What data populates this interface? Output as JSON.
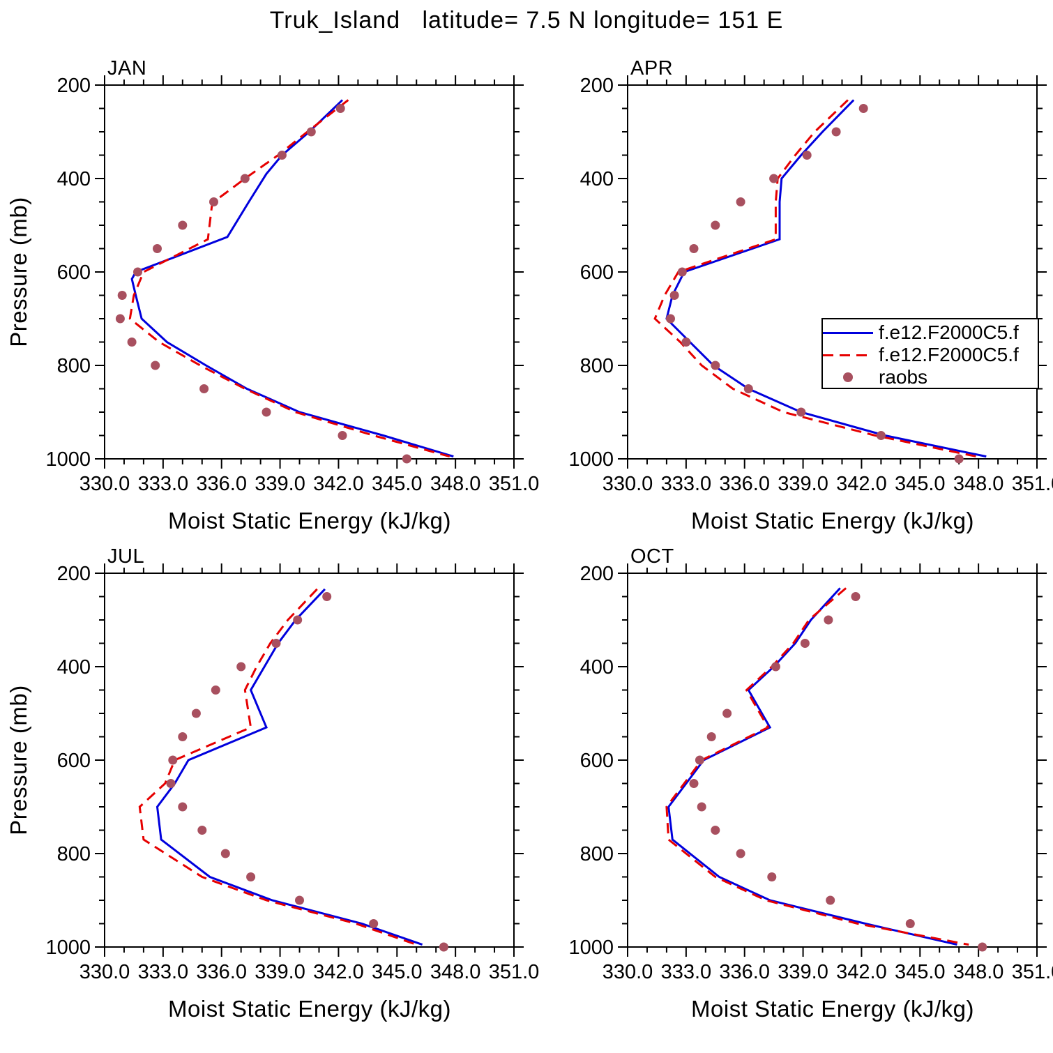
{
  "title": "Truk_Island   latitude= 7.5 N longitude= 151 E",
  "legend": {
    "items": [
      {
        "label": "f.e12.F2000C5.f",
        "style": "solid",
        "color": "#0000DD"
      },
      {
        "label": "f.e12.F2000C5.f",
        "style": "dashed",
        "color": "#E60000"
      },
      {
        "label": "raobs",
        "style": "dot",
        "color": "#A8505F"
      }
    ]
  },
  "axes": {
    "x": {
      "label": "Moist Static Energy (kJ/kg)",
      "min": 330,
      "max": 351,
      "major_ticks": [
        330,
        333,
        336,
        339,
        342,
        345,
        348,
        351
      ],
      "tick_labels": [
        "330.0",
        "333.0",
        "336.0",
        "339.0",
        "342.0",
        "345.0",
        "348.0",
        "351.0"
      ],
      "minor_step": 1
    },
    "y": {
      "label": "Pressure (mb)",
      "min": 200,
      "max": 1000,
      "major_ticks": [
        200,
        400,
        600,
        800,
        1000
      ],
      "tick_labels": [
        "200",
        "400",
        "600",
        "800",
        "1000"
      ],
      "minor_step": 50,
      "inverted": true
    }
  },
  "chart_data": [
    {
      "type": "line",
      "month": "JAN",
      "series": [
        {
          "name": "f.e12.F2000C5.f",
          "style": "solid",
          "color": "#0000DD",
          "points": [
            [
              232,
              342.2
            ],
            [
              300,
              340.5
            ],
            [
              350,
              339.1
            ],
            [
              390,
              338.3
            ],
            [
              450,
              337.4
            ],
            [
              525,
              336.3
            ],
            [
              600,
              331.6
            ],
            [
              615,
              331.4
            ],
            [
              650,
              331.6
            ],
            [
              700,
              331.9
            ],
            [
              750,
              333.2
            ],
            [
              800,
              335.2
            ],
            [
              850,
              337.3
            ],
            [
              900,
              340.0
            ],
            [
              950,
              344.3
            ],
            [
              995,
              347.9
            ]
          ]
        },
        {
          "name": "f.e12.F2000C5.f",
          "style": "dashed",
          "color": "#E60000",
          "points": [
            [
              232,
              342.5
            ],
            [
              300,
              340.4
            ],
            [
              350,
              338.9
            ],
            [
              400,
              337.2
            ],
            [
              450,
              335.6
            ],
            [
              460,
              335.5
            ],
            [
              530,
              335.3
            ],
            [
              600,
              332.0
            ],
            [
              650,
              331.5
            ],
            [
              700,
              331.3
            ],
            [
              750,
              332.8
            ],
            [
              800,
              334.9
            ],
            [
              850,
              337.2
            ],
            [
              900,
              339.8
            ],
            [
              950,
              343.8
            ],
            [
              995,
              347.7
            ]
          ]
        },
        {
          "name": "raobs",
          "style": "dots",
          "color": "#A8505F",
          "points": [
            [
              250,
              342.1
            ],
            [
              300,
              340.6
            ],
            [
              350,
              339.1
            ],
            [
              400,
              337.2
            ],
            [
              450,
              335.6
            ],
            [
              500,
              334.0
            ],
            [
              550,
              332.7
            ],
            [
              600,
              331.7
            ],
            [
              650,
              330.9
            ],
            [
              700,
              330.8
            ],
            [
              750,
              331.4
            ],
            [
              800,
              332.6
            ],
            [
              850,
              335.1
            ],
            [
              900,
              338.3
            ],
            [
              950,
              342.2
            ],
            [
              1000,
              345.5
            ]
          ]
        }
      ]
    },
    {
      "type": "line",
      "month": "APR",
      "series": [
        {
          "name": "f.e12.F2000C5.f",
          "style": "solid",
          "color": "#0000DD",
          "points": [
            [
              232,
              341.6
            ],
            [
              300,
              340.0
            ],
            [
              350,
              338.9
            ],
            [
              400,
              337.9
            ],
            [
              450,
              337.8
            ],
            [
              530,
              337.8
            ],
            [
              600,
              332.9
            ],
            [
              650,
              332.3
            ],
            [
              700,
              332.0
            ],
            [
              750,
              333.2
            ],
            [
              800,
              334.4
            ],
            [
              850,
              336.2
            ],
            [
              900,
              338.9
            ],
            [
              950,
              343.2
            ],
            [
              995,
              348.4
            ]
          ]
        },
        {
          "name": "f.e12.F2000C5.f",
          "style": "dashed",
          "color": "#E60000",
          "points": [
            [
              232,
              341.3
            ],
            [
              300,
              339.6
            ],
            [
              350,
              338.6
            ],
            [
              400,
              337.7
            ],
            [
              450,
              337.6
            ],
            [
              530,
              337.6
            ],
            [
              600,
              332.6
            ],
            [
              650,
              331.9
            ],
            [
              700,
              331.4
            ],
            [
              750,
              332.7
            ],
            [
              800,
              333.8
            ],
            [
              850,
              335.4
            ],
            [
              900,
              338.0
            ],
            [
              950,
              342.7
            ],
            [
              995,
              347.9
            ]
          ]
        },
        {
          "name": "raobs",
          "style": "dots",
          "color": "#A8505F",
          "points": [
            [
              250,
              342.1
            ],
            [
              300,
              340.7
            ],
            [
              350,
              339.2
            ],
            [
              400,
              337.5
            ],
            [
              450,
              335.8
            ],
            [
              500,
              334.5
            ],
            [
              550,
              333.4
            ],
            [
              600,
              332.8
            ],
            [
              650,
              332.4
            ],
            [
              700,
              332.2
            ],
            [
              750,
              333.0
            ],
            [
              800,
              334.5
            ],
            [
              850,
              336.2
            ],
            [
              900,
              338.9
            ],
            [
              950,
              343.0
            ],
            [
              1000,
              347.0
            ]
          ]
        }
      ]
    },
    {
      "type": "line",
      "month": "JUL",
      "series": [
        {
          "name": "f.e12.F2000C5.f",
          "style": "solid",
          "color": "#0000DD",
          "points": [
            [
              234,
              341.3
            ],
            [
              300,
              339.8
            ],
            [
              350,
              338.9
            ],
            [
              400,
              338.2
            ],
            [
              450,
              337.5
            ],
            [
              530,
              338.3
            ],
            [
              600,
              334.3
            ],
            [
              650,
              333.6
            ],
            [
              700,
              332.7
            ],
            [
              770,
              332.9
            ],
            [
              850,
              335.4
            ],
            [
              900,
              338.6
            ],
            [
              950,
              343.2
            ],
            [
              995,
              346.3
            ]
          ]
        },
        {
          "name": "f.e12.F2000C5.f",
          "style": "dashed",
          "color": "#E60000",
          "points": [
            [
              234,
              340.9
            ],
            [
              300,
              339.4
            ],
            [
              350,
              338.5
            ],
            [
              400,
              337.8
            ],
            [
              450,
              337.2
            ],
            [
              530,
              337.5
            ],
            [
              600,
              333.6
            ],
            [
              650,
              333.1
            ],
            [
              700,
              331.8
            ],
            [
              770,
              332.0
            ],
            [
              850,
              335.0
            ],
            [
              900,
              338.3
            ],
            [
              950,
              342.9
            ],
            [
              995,
              346.0
            ]
          ]
        },
        {
          "name": "raobs",
          "style": "dots",
          "color": "#A8505F",
          "points": [
            [
              250,
              341.4
            ],
            [
              300,
              339.9
            ],
            [
              350,
              338.8
            ],
            [
              400,
              337.0
            ],
            [
              450,
              335.7
            ],
            [
              500,
              334.7
            ],
            [
              550,
              334.0
            ],
            [
              600,
              333.5
            ],
            [
              650,
              333.4
            ],
            [
              700,
              334.0
            ],
            [
              750,
              335.0
            ],
            [
              800,
              336.2
            ],
            [
              850,
              337.5
            ],
            [
              900,
              340.0
            ],
            [
              950,
              343.8
            ],
            [
              1000,
              347.4
            ]
          ]
        }
      ]
    },
    {
      "type": "line",
      "month": "OCT",
      "series": [
        {
          "name": "f.e12.F2000C5.f",
          "style": "solid",
          "color": "#0000DD",
          "points": [
            [
              232,
              340.9
            ],
            [
              300,
              339.4
            ],
            [
              350,
              338.6
            ],
            [
              400,
              337.5
            ],
            [
              450,
              336.2
            ],
            [
              530,
              337.3
            ],
            [
              600,
              333.9
            ],
            [
              650,
              333.0
            ],
            [
              700,
              332.1
            ],
            [
              770,
              332.3
            ],
            [
              850,
              334.7
            ],
            [
              900,
              337.3
            ],
            [
              950,
              342.2
            ],
            [
              995,
              346.9
            ]
          ]
        },
        {
          "name": "f.e12.F2000C5.f",
          "style": "dashed",
          "color": "#E60000",
          "points": [
            [
              232,
              341.2
            ],
            [
              300,
              339.3
            ],
            [
              350,
              338.5
            ],
            [
              400,
              337.4
            ],
            [
              450,
              336.1
            ],
            [
              530,
              337.2
            ],
            [
              600,
              333.8
            ],
            [
              650,
              332.9
            ],
            [
              700,
              332.0
            ],
            [
              770,
              332.1
            ],
            [
              850,
              334.5
            ],
            [
              900,
              337.1
            ],
            [
              950,
              341.8
            ],
            [
              995,
              347.5
            ]
          ]
        },
        {
          "name": "raobs",
          "style": "dots",
          "color": "#A8505F",
          "points": [
            [
              250,
              341.7
            ],
            [
              300,
              340.3
            ],
            [
              350,
              339.1
            ],
            [
              400,
              337.6
            ],
            [
              500,
              335.1
            ],
            [
              550,
              334.3
            ],
            [
              600,
              333.7
            ],
            [
              650,
              333.4
            ],
            [
              700,
              333.8
            ],
            [
              750,
              334.5
            ],
            [
              800,
              335.8
            ],
            [
              850,
              337.4
            ],
            [
              900,
              340.4
            ],
            [
              950,
              344.5
            ],
            [
              1000,
              348.2
            ]
          ]
        }
      ]
    }
  ]
}
